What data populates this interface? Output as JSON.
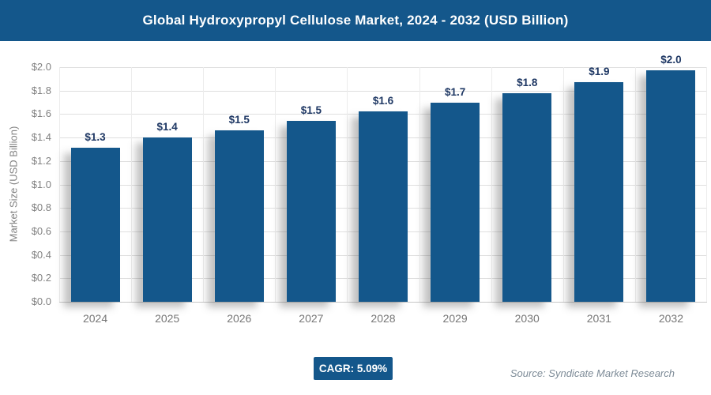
{
  "header": {
    "title": "Global Hydroxypropyl Cellulose Market, 2024 - 2032 (USD Billion)"
  },
  "chart_data": {
    "type": "bar",
    "title": "Global Hydroxypropyl Cellulose Market, 2024 - 2032 (USD Billion)",
    "categories": [
      "2024",
      "2025",
      "2026",
      "2027",
      "2028",
      "2029",
      "2030",
      "2031",
      "2032"
    ],
    "values": [
      1.31,
      1.4,
      1.46,
      1.54,
      1.62,
      1.7,
      1.78,
      1.87,
      1.97
    ],
    "bar_labels": [
      "$1.3",
      "$1.4",
      "$1.5",
      "$1.5",
      "$1.6",
      "$1.7",
      "$1.8",
      "$1.9",
      "$2.0"
    ],
    "xlabel": "",
    "ylabel": "Market Size (USD Billion)",
    "ylim": [
      0,
      2.0
    ],
    "yticks": [
      {
        "value": 0.0,
        "label": "$0.0"
      },
      {
        "value": 0.2,
        "label": "$0.2"
      },
      {
        "value": 0.4,
        "label": "$0.4"
      },
      {
        "value": 0.6,
        "label": "$0.6"
      },
      {
        "value": 0.8,
        "label": "$0.8"
      },
      {
        "value": 1.0,
        "label": "$1.0"
      },
      {
        "value": 1.2,
        "label": "$1.2"
      },
      {
        "value": 1.4,
        "label": "$1.4"
      },
      {
        "value": 1.6,
        "label": "$1.6"
      },
      {
        "value": 1.8,
        "label": "$1.8"
      },
      {
        "value": 2.0,
        "label": "$2.0"
      }
    ],
    "grid": true,
    "legend": "none",
    "bar_color": "#14578b",
    "bar_label_color": "#1f3864"
  },
  "footer": {
    "cagr_label": "CAGR: 5.09%",
    "source": "Source: Syndicate Market Research"
  },
  "colors": {
    "header_bg": "#14578b",
    "bar": "#14578b",
    "bar_label": "#1f3864",
    "axis_text": "#828282",
    "gridline": "#dfdfdf",
    "source_text": "#7d8b97"
  }
}
